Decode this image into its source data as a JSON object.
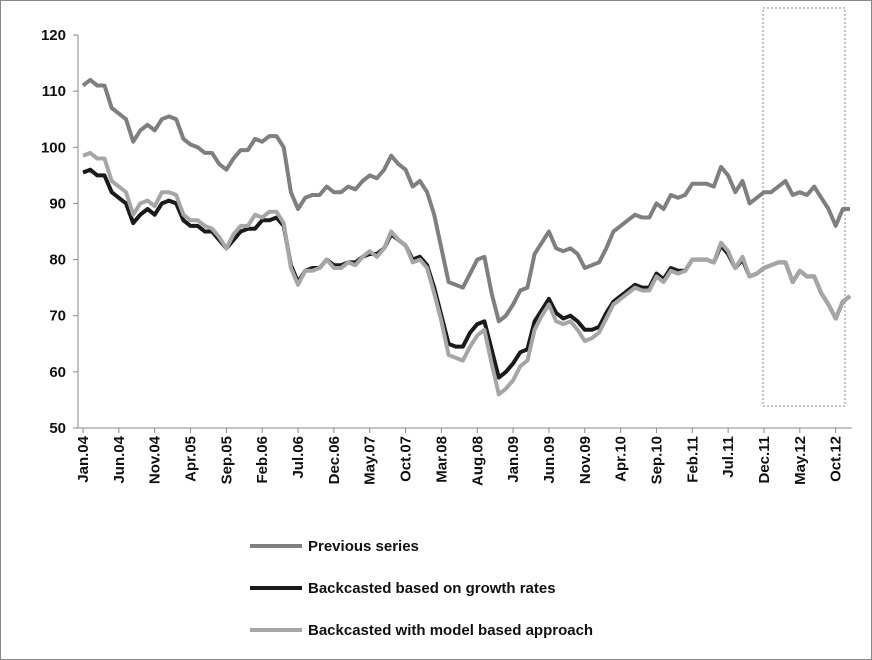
{
  "chart_data": {
    "type": "line",
    "categories": [
      "Jan.04",
      null,
      null,
      null,
      null,
      "Jun.04",
      null,
      null,
      null,
      null,
      "Nov.04",
      null,
      null,
      null,
      null,
      "Apr.05",
      null,
      null,
      null,
      null,
      "Sep.05",
      null,
      null,
      null,
      null,
      "Feb.06",
      null,
      null,
      null,
      null,
      "Jul.06",
      null,
      null,
      null,
      null,
      "Dec.06",
      null,
      null,
      null,
      null,
      "May.07",
      null,
      null,
      null,
      null,
      "Oct.07",
      null,
      null,
      null,
      null,
      "Mar.08",
      null,
      null,
      null,
      null,
      "Aug.08",
      null,
      null,
      null,
      null,
      "Jan.09",
      null,
      null,
      null,
      null,
      "Jun.09",
      null,
      null,
      null,
      null,
      "Nov.09",
      null,
      null,
      null,
      null,
      "Apr.10",
      null,
      null,
      null,
      null,
      "Sep.10",
      null,
      null,
      null,
      null,
      "Feb.11",
      null,
      null,
      null,
      null,
      "Jul.11",
      null,
      null,
      null,
      null,
      "Dec.11",
      null,
      null,
      null,
      null,
      "May.12",
      null,
      null,
      null,
      null,
      "Oct.12",
      null,
      null
    ],
    "series": [
      {
        "name": "Previous series",
        "color": "#7f7f7f",
        "values": [
          111,
          112,
          111,
          111,
          107,
          106,
          105,
          101,
          103,
          104,
          103,
          105,
          105.5,
          105,
          101.5,
          100.5,
          100,
          99,
          99,
          97,
          96,
          98,
          99.5,
          99.5,
          101.5,
          101,
          102,
          102,
          100,
          92,
          89,
          91,
          91.5,
          91.5,
          93,
          92,
          92,
          93,
          92.5,
          94,
          95,
          94.5,
          96,
          98.5,
          97,
          96,
          93,
          94,
          92,
          88,
          82,
          76,
          75.5,
          75,
          77.5,
          80,
          80.5,
          74,
          69,
          70,
          72,
          74.5,
          75,
          81,
          83,
          85,
          82,
          81.5,
          82,
          81,
          78.5,
          79,
          79.5,
          82,
          85,
          86,
          87,
          88,
          87.5,
          87.5,
          90,
          89,
          91.5,
          91,
          91.5,
          93.5,
          93.5,
          93.5,
          93,
          96.5,
          95,
          92,
          94,
          90,
          91,
          92,
          92,
          93,
          94,
          91.5,
          92,
          91.5,
          93,
          91,
          89,
          86,
          89,
          89
        ]
      },
      {
        "name": "Backcasted based on growth rates",
        "color": "#1a1a1a",
        "values": [
          95.5,
          96,
          95,
          95,
          92,
          91,
          90,
          86.5,
          88,
          89,
          88,
          90,
          90.5,
          90,
          87,
          86,
          86,
          85,
          85,
          83.5,
          82,
          83.5,
          85,
          85.5,
          85.5,
          87,
          87,
          87.5,
          86,
          79,
          76,
          78,
          78.5,
          78.5,
          80,
          79,
          79,
          79.5,
          79.5,
          80.5,
          81,
          81,
          82,
          84.5,
          83.5,
          82.5,
          80,
          80.5,
          79,
          75,
          70,
          65,
          64.5,
          64.5,
          67,
          68.5,
          69,
          64,
          59,
          60,
          61.5,
          63.5,
          64,
          69,
          71,
          73,
          70.5,
          69.5,
          70,
          69,
          67.5,
          67.5,
          68,
          70.5,
          72.5,
          73.5,
          74.5,
          75.5,
          75,
          75,
          77.5,
          76.5,
          78.5,
          78,
          78,
          80,
          80,
          80,
          79.5,
          82.5,
          81,
          78.5,
          80,
          77,
          77.5,
          78.5,
          79,
          79.5,
          79.5,
          76,
          78,
          77,
          77,
          74,
          72,
          69.5,
          72.5,
          73.5
        ]
      },
      {
        "name": "Backcasted with model based approach",
        "color": "#a6a6a6",
        "values": [
          98.5,
          99,
          98,
          98,
          94,
          93,
          92,
          88,
          90,
          90.5,
          89.5,
          92,
          92,
          91.5,
          88,
          87,
          87,
          86,
          85.5,
          84,
          82,
          84.5,
          86,
          86,
          88,
          87.5,
          88.5,
          88.5,
          86.5,
          78.5,
          75.5,
          78,
          78,
          78.5,
          80,
          78.5,
          78.5,
          79.5,
          79,
          80.5,
          81.5,
          80.5,
          82,
          85,
          83.5,
          82.5,
          79.5,
          80,
          78.5,
          74,
          69,
          63,
          62.5,
          62,
          64.5,
          66.5,
          67.5,
          61.5,
          56,
          57,
          58.5,
          61,
          62,
          67.5,
          70,
          72,
          69,
          68.5,
          69,
          67.5,
          65.5,
          66,
          67,
          69.5,
          72,
          73,
          74,
          75,
          74.5,
          74.5,
          77,
          76,
          78,
          77.5,
          78,
          80,
          80,
          80,
          79.5,
          83,
          81.5,
          78.5,
          80.5,
          77,
          77.5,
          78.5,
          79,
          79.5,
          79.5,
          76,
          78,
          77,
          77,
          74,
          72,
          69.5,
          72.5,
          73.5
        ]
      }
    ],
    "ylim": [
      50,
      120
    ],
    "yticks": [
      50,
      60,
      70,
      80,
      90,
      100,
      110,
      120
    ]
  }
}
